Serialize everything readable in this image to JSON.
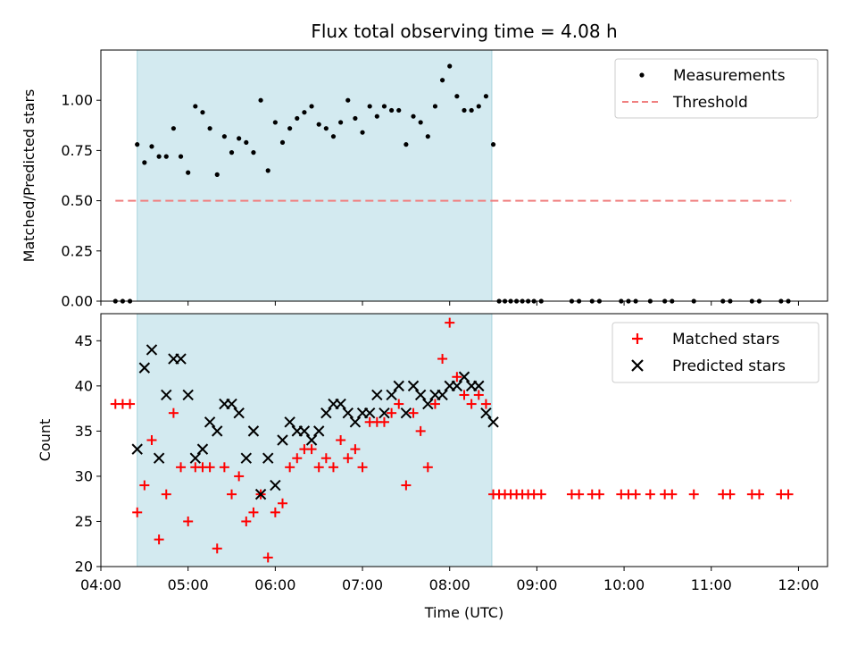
{
  "chart_data": [
    {
      "type": "scatter",
      "title": "Flux total observing time = 4.08 h",
      "xlabel": "",
      "ylabel": "Matched/Predicted stars",
      "xlim": [
        "04:00",
        "12:20"
      ],
      "ylim": [
        0,
        1.25
      ],
      "yticks": [
        0.0,
        0.25,
        0.5,
        0.75,
        1.0
      ],
      "ytick_labels": [
        "0.00",
        "0.25",
        "0.50",
        "0.75",
        "1.00"
      ],
      "observing_window": [
        "04:25",
        "08:29"
      ],
      "window_color": "#d3eaf0",
      "legend": "top-right",
      "series": [
        {
          "name": "Measurements",
          "marker": "dot",
          "color": "#000000",
          "x": [
            "04:10",
            "04:15",
            "04:20",
            "04:25",
            "04:30",
            "04:35",
            "04:40",
            "04:45",
            "04:50",
            "04:55",
            "05:00",
            "05:05",
            "05:10",
            "05:15",
            "05:20",
            "05:25",
            "05:30",
            "05:35",
            "05:40",
            "05:45",
            "05:50",
            "05:55",
            "06:00",
            "06:05",
            "06:10",
            "06:15",
            "06:20",
            "06:25",
            "06:30",
            "06:35",
            "06:40",
            "06:45",
            "06:50",
            "06:55",
            "07:00",
            "07:05",
            "07:10",
            "07:15",
            "07:20",
            "07:25",
            "07:30",
            "07:35",
            "07:40",
            "07:45",
            "07:50",
            "07:55",
            "08:00",
            "08:05",
            "08:10",
            "08:15",
            "08:20",
            "08:25",
            "08:30",
            "08:34",
            "08:38",
            "08:42",
            "08:46",
            "08:50",
            "08:54",
            "08:58",
            "09:03",
            "09:24",
            "09:29",
            "09:38",
            "09:43",
            "09:58",
            "10:03",
            "10:08",
            "10:18",
            "10:28",
            "10:33",
            "10:48",
            "11:08",
            "11:13",
            "11:28",
            "11:33",
            "11:48",
            "11:53"
          ],
          "y": [
            0.0,
            0.0,
            0.0,
            0.78,
            0.69,
            0.77,
            0.72,
            0.72,
            0.86,
            0.72,
            0.64,
            0.97,
            0.94,
            0.86,
            0.63,
            0.82,
            0.74,
            0.81,
            0.79,
            0.74,
            1.0,
            0.65,
            0.89,
            0.79,
            0.86,
            0.91,
            0.94,
            0.97,
            0.88,
            0.86,
            0.82,
            0.89,
            1.0,
            0.91,
            0.84,
            0.97,
            0.92,
            0.97,
            0.95,
            0.95,
            0.78,
            0.92,
            0.89,
            0.82,
            0.97,
            1.1,
            1.17,
            1.02,
            0.95,
            0.95,
            0.97,
            1.02,
            0.78,
            0.0,
            0.0,
            0.0,
            0.0,
            0.0,
            0.0,
            0.0,
            0.0,
            0.0,
            0.0,
            0.0,
            0.0,
            0.0,
            0.0,
            0.0,
            0.0,
            0.0,
            0.0,
            0.0,
            0.0,
            0.0,
            0.0,
            0.0,
            0.0,
            0.0
          ]
        },
        {
          "name": "Threshold",
          "marker": "dashed-line",
          "color": "#f08080",
          "x": [
            "04:10",
            "11:55"
          ],
          "y": [
            0.5,
            0.5
          ]
        }
      ]
    },
    {
      "type": "scatter",
      "title": "",
      "xlabel": "Time (UTC)",
      "ylabel": "Count",
      "xlim": [
        "04:00",
        "12:20"
      ],
      "ylim": [
        20,
        48
      ],
      "yticks": [
        20,
        25,
        30,
        35,
        40,
        45
      ],
      "ytick_labels": [
        "20",
        "25",
        "30",
        "35",
        "40",
        "45"
      ],
      "xticks": [
        "04:00",
        "05:00",
        "06:00",
        "07:00",
        "08:00",
        "09:00",
        "10:00",
        "11:00",
        "12:00"
      ],
      "observing_window": [
        "04:25",
        "08:29"
      ],
      "legend": "top-right",
      "series": [
        {
          "name": "Matched stars",
          "marker": "plus",
          "color": "#ff0000",
          "x": [
            "04:10",
            "04:15",
            "04:20",
            "04:25",
            "04:30",
            "04:35",
            "04:40",
            "04:45",
            "04:50",
            "04:55",
            "05:00",
            "05:05",
            "05:10",
            "05:15",
            "05:20",
            "05:25",
            "05:30",
            "05:35",
            "05:40",
            "05:45",
            "05:50",
            "05:55",
            "06:00",
            "06:05",
            "06:10",
            "06:15",
            "06:20",
            "06:25",
            "06:30",
            "06:35",
            "06:40",
            "06:45",
            "06:50",
            "06:55",
            "07:00",
            "07:05",
            "07:10",
            "07:15",
            "07:20",
            "07:25",
            "07:30",
            "07:35",
            "07:40",
            "07:45",
            "07:50",
            "07:55",
            "08:00",
            "08:05",
            "08:10",
            "08:15",
            "08:20",
            "08:25",
            "08:30",
            "08:34",
            "08:38",
            "08:42",
            "08:46",
            "08:50",
            "08:54",
            "08:58",
            "09:03",
            "09:24",
            "09:29",
            "09:38",
            "09:43",
            "09:58",
            "10:03",
            "10:08",
            "10:18",
            "10:28",
            "10:33",
            "10:48",
            "11:08",
            "11:13",
            "11:28",
            "11:33",
            "11:48",
            "11:53"
          ],
          "y": [
            38,
            38,
            38,
            26,
            29,
            34,
            23,
            28,
            37,
            31,
            25,
            31,
            31,
            31,
            22,
            31,
            28,
            30,
            25,
            26,
            28,
            21,
            26,
            27,
            31,
            32,
            33,
            33,
            31,
            32,
            31,
            34,
            32,
            33,
            31,
            36,
            36,
            36,
            37,
            38,
            29,
            37,
            35,
            31,
            38,
            43,
            47,
            41,
            39,
            38,
            39,
            38,
            28,
            28,
            28,
            28,
            28,
            28,
            28,
            28,
            28,
            28,
            28,
            28,
            28,
            28,
            28,
            28,
            28,
            28,
            28,
            28,
            28,
            28,
            28,
            28,
            28,
            28
          ]
        },
        {
          "name": "Predicted stars",
          "marker": "x",
          "color": "#000000",
          "x": [
            "04:25",
            "04:30",
            "04:35",
            "04:40",
            "04:45",
            "04:50",
            "04:55",
            "05:00",
            "05:05",
            "05:10",
            "05:15",
            "05:20",
            "05:25",
            "05:30",
            "05:35",
            "05:40",
            "05:45",
            "05:50",
            "05:55",
            "06:00",
            "06:05",
            "06:10",
            "06:15",
            "06:20",
            "06:25",
            "06:30",
            "06:35",
            "06:40",
            "06:45",
            "06:50",
            "06:55",
            "07:00",
            "07:05",
            "07:10",
            "07:15",
            "07:20",
            "07:25",
            "07:30",
            "07:35",
            "07:40",
            "07:45",
            "07:50",
            "07:55",
            "08:00",
            "08:05",
            "08:10",
            "08:15",
            "08:20",
            "08:25",
            "08:30"
          ],
          "y": [
            33,
            42,
            44,
            32,
            39,
            43,
            43,
            39,
            32,
            33,
            36,
            35,
            38,
            38,
            37,
            32,
            35,
            28,
            32,
            29,
            34,
            36,
            35,
            35,
            34,
            35,
            37,
            38,
            38,
            37,
            36,
            37,
            37,
            39,
            37,
            39,
            40,
            37,
            40,
            39,
            38,
            39,
            39,
            40,
            40,
            41,
            40,
            40,
            37,
            36
          ]
        }
      ]
    }
  ]
}
